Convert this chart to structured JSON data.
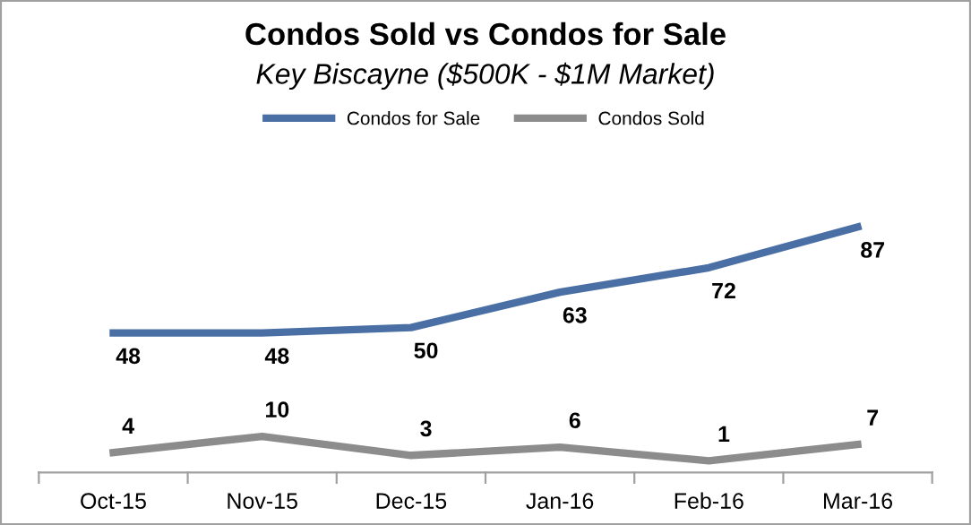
{
  "chart_data": {
    "type": "line",
    "title": "Condos Sold vs Condos for Sale",
    "subtitle": "Key Biscayne ($500K - $1M Market)",
    "categories": [
      "Oct-15",
      "Nov-15",
      "Dec-15",
      "Jan-16",
      "Feb-16",
      "Mar-16"
    ],
    "series": [
      {
        "name": "Condos for Sale",
        "color": "#4a6fa5",
        "values": [
          48,
          48,
          50,
          63,
          72,
          87
        ]
      },
      {
        "name": "Condos Sold",
        "color": "#8c8c8c",
        "values": [
          4,
          10,
          3,
          6,
          1,
          7
        ]
      }
    ],
    "tick_labels": "x",
    "data_labels": true,
    "legend": "top",
    "grid": false,
    "marker": "none",
    "line_style": "solid"
  }
}
